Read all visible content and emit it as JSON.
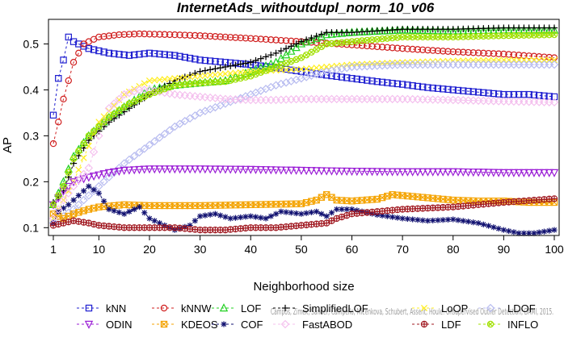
{
  "chart_data": {
    "type": "line",
    "title": "InternetAds_withoutdupl_norm_10_v06",
    "xlabel": "Neighborhood size",
    "ylabel": "AP",
    "xlim": [
      1,
      100
    ],
    "ylim": [
      0.09,
      0.55
    ],
    "xticks": [
      1,
      10,
      20,
      30,
      40,
      50,
      60,
      70,
      80,
      90,
      100
    ],
    "yticks": [
      0.1,
      0.2,
      0.3,
      0.4,
      0.5
    ],
    "grid": false,
    "legend_position": "bottom",
    "watermark": "Campos, Zimek, Sander, Campello, Micenkova, Schubert, Assent, Houle: Unsupervised Outlier Detection, DAMI, 2015.",
    "series": [
      {
        "name": "kNN",
        "color": "#1f1fd0",
        "marker": "square",
        "kx": [
          1,
          2,
          3,
          4,
          5,
          8,
          12,
          16,
          20,
          25,
          30,
          35,
          40,
          45,
          50,
          55,
          60,
          65,
          70,
          75,
          80,
          85,
          90,
          95,
          100
        ],
        "ky": [
          0.345,
          0.425,
          0.465,
          0.515,
          0.505,
          0.49,
          0.48,
          0.475,
          0.48,
          0.475,
          0.465,
          0.46,
          0.455,
          0.448,
          0.44,
          0.432,
          0.425,
          0.418,
          0.412,
          0.405,
          0.4,
          0.395,
          0.39,
          0.39,
          0.385
        ]
      },
      {
        "name": "kNNW",
        "color": "#d01f1f",
        "marker": "circle",
        "kx": [
          1,
          2,
          3,
          4,
          5,
          7,
          10,
          14,
          18,
          25,
          30,
          40,
          50,
          60,
          70,
          80,
          90,
          100
        ],
        "ky": [
          0.283,
          0.33,
          0.38,
          0.42,
          0.46,
          0.5,
          0.515,
          0.52,
          0.522,
          0.52,
          0.518,
          0.512,
          0.505,
          0.498,
          0.49,
          0.483,
          0.478,
          0.47
        ]
      },
      {
        "name": "LOF",
        "color": "#22d022",
        "marker": "triangle-up",
        "kx": [
          1,
          3,
          5,
          8,
          12,
          16,
          20,
          25,
          30,
          35,
          40,
          45,
          50,
          55,
          60,
          70,
          80,
          90,
          100
        ],
        "ky": [
          0.15,
          0.2,
          0.255,
          0.3,
          0.34,
          0.37,
          0.4,
          0.41,
          0.415,
          0.42,
          0.44,
          0.46,
          0.5,
          0.52,
          0.525,
          0.53,
          0.528,
          0.53,
          0.53
        ]
      },
      {
        "name": "SimplifiedLOF",
        "color": "#000000",
        "marker": "plus",
        "kx": [
          1,
          3,
          5,
          8,
          12,
          16,
          20,
          25,
          30,
          35,
          40,
          45,
          50,
          55,
          60,
          70,
          80,
          90,
          100
        ],
        "ky": [
          0.155,
          0.18,
          0.24,
          0.29,
          0.33,
          0.36,
          0.39,
          0.42,
          0.44,
          0.45,
          0.46,
          0.48,
          0.505,
          0.525,
          0.525,
          0.532,
          0.532,
          0.535,
          0.535
        ]
      },
      {
        "name": "LoOP",
        "color": "#ffee22",
        "marker": "x",
        "kx": [
          1,
          5,
          10,
          15,
          20,
          25,
          30,
          40,
          50,
          60,
          70,
          80,
          90,
          100
        ],
        "ky": [
          0.12,
          0.2,
          0.33,
          0.39,
          0.42,
          0.425,
          0.43,
          0.44,
          0.445,
          0.455,
          0.46,
          0.463,
          0.465,
          0.465
        ]
      },
      {
        "name": "LDOF",
        "color": "#b8bcf0",
        "marker": "diamond",
        "kx": [
          1,
          5,
          10,
          15,
          20,
          25,
          30,
          35,
          40,
          45,
          50,
          55,
          60,
          70,
          80,
          90,
          100
        ],
        "ky": [
          0.11,
          0.14,
          0.19,
          0.24,
          0.28,
          0.32,
          0.35,
          0.37,
          0.39,
          0.41,
          0.425,
          0.44,
          0.45,
          0.455,
          0.455,
          0.455,
          0.455
        ]
      },
      {
        "name": "ODIN",
        "color": "#9b1fd6",
        "marker": "triangle-down",
        "kx": [
          1,
          3,
          5,
          8,
          10,
          12,
          15,
          20,
          30,
          40,
          50,
          60,
          70,
          80,
          90,
          100
        ],
        "ky": [
          0.15,
          0.18,
          0.2,
          0.21,
          0.215,
          0.22,
          0.225,
          0.228,
          0.228,
          0.227,
          0.225,
          0.223,
          0.222,
          0.222,
          0.22,
          0.22
        ]
      },
      {
        "name": "KDEOS",
        "color": "#f4a300",
        "marker": "square-x",
        "kx": [
          1,
          3,
          5,
          8,
          10,
          15,
          20,
          30,
          40,
          50,
          53,
          55,
          57,
          60,
          65,
          68,
          70,
          75,
          80,
          85,
          90,
          95,
          100
        ],
        "ky": [
          0.13,
          0.12,
          0.13,
          0.14,
          0.145,
          0.15,
          0.148,
          0.148,
          0.15,
          0.152,
          0.16,
          0.172,
          0.16,
          0.158,
          0.162,
          0.172,
          0.17,
          0.165,
          0.16,
          0.158,
          0.158,
          0.155,
          0.155
        ]
      },
      {
        "name": "COF",
        "color": "#101070",
        "marker": "star",
        "kx": [
          1,
          2,
          4,
          6,
          8,
          10,
          12,
          15,
          18,
          20,
          22,
          25,
          28,
          30,
          33,
          36,
          40,
          43,
          46,
          50,
          53,
          55,
          57,
          60,
          65,
          70,
          75,
          80,
          85,
          90,
          93,
          96,
          100
        ],
        "ky": [
          0.11,
          0.135,
          0.15,
          0.17,
          0.19,
          0.175,
          0.14,
          0.13,
          0.145,
          0.12,
          0.11,
          0.095,
          0.105,
          0.125,
          0.13,
          0.12,
          0.125,
          0.12,
          0.135,
          0.13,
          0.135,
          0.125,
          0.14,
          0.14,
          0.128,
          0.12,
          0.115,
          0.118,
          0.11,
          0.095,
          0.088,
          0.088,
          0.095
        ]
      },
      {
        "name": "FastABOD",
        "color": "#f4c0ee",
        "marker": "diamond",
        "kx": [
          1,
          3,
          5,
          8,
          10,
          12,
          15,
          18,
          20,
          25,
          30,
          35,
          40,
          45,
          50,
          60,
          70,
          80,
          90,
          100
        ],
        "ky": [
          0.12,
          0.16,
          0.19,
          0.23,
          0.3,
          0.36,
          0.39,
          0.4,
          0.4,
          0.39,
          0.385,
          0.38,
          0.378,
          0.378,
          0.38,
          0.38,
          0.38,
          0.378,
          0.375,
          0.373
        ]
      },
      {
        "name": "LDF",
        "color": "#a01820",
        "marker": "circle-plus",
        "kx": [
          1,
          5,
          8,
          10,
          15,
          20,
          25,
          30,
          35,
          40,
          45,
          50,
          55,
          57,
          60,
          70,
          80,
          90,
          100
        ],
        "ky": [
          0.105,
          0.115,
          0.11,
          0.105,
          0.1,
          0.1,
          0.1,
          0.095,
          0.095,
          0.1,
          0.1,
          0.105,
          0.11,
          0.12,
          0.13,
          0.14,
          0.145,
          0.155,
          0.163
        ]
      },
      {
        "name": "INFLO",
        "color": "#a0e000",
        "marker": "circle-x",
        "kx": [
          1,
          3,
          5,
          8,
          12,
          16,
          20,
          25,
          30,
          35,
          40,
          45,
          50,
          55,
          60,
          65,
          70,
          80,
          90,
          100
        ],
        "ky": [
          0.15,
          0.19,
          0.25,
          0.3,
          0.34,
          0.37,
          0.39,
          0.41,
          0.415,
          0.418,
          0.43,
          0.45,
          0.47,
          0.5,
          0.505,
          0.51,
          0.515,
          0.515,
          0.518,
          0.52
        ]
      }
    ]
  }
}
